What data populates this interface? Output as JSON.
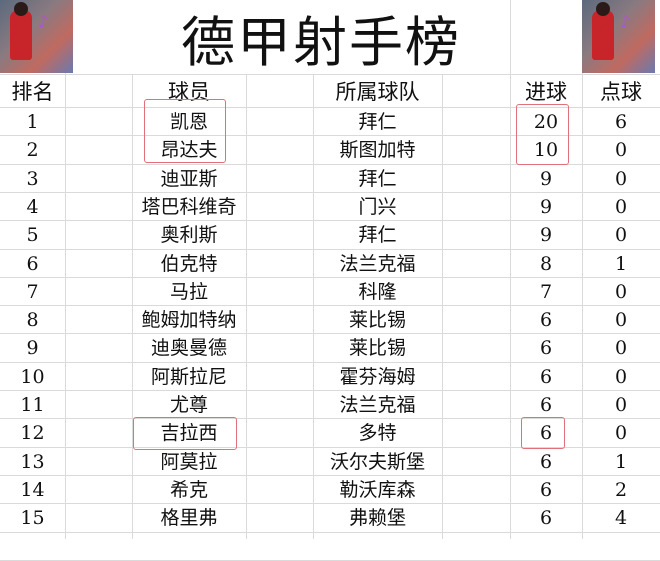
{
  "title": "德甲射手榜",
  "images": [
    "player-artwork-left",
    "player-artwork-right"
  ],
  "headers": {
    "rank": "排名",
    "player": "球员",
    "team": "所属球队",
    "goals": "进球",
    "penalties": "点球"
  },
  "highlight_color": "#e0707a",
  "rows": [
    {
      "rank": "1",
      "player": "凯恩",
      "team": "拜仁",
      "goals": "20",
      "penalties": "6"
    },
    {
      "rank": "2",
      "player": "昂达夫",
      "team": "斯图加特",
      "goals": "10",
      "penalties": "0"
    },
    {
      "rank": "3",
      "player": "迪亚斯",
      "team": "拜仁",
      "goals": "9",
      "penalties": "0"
    },
    {
      "rank": "4",
      "player": "塔巴科维奇",
      "team": "门兴",
      "goals": "9",
      "penalties": "0"
    },
    {
      "rank": "5",
      "player": "奥利斯",
      "team": "拜仁",
      "goals": "9",
      "penalties": "0"
    },
    {
      "rank": "6",
      "player": "伯克特",
      "team": "法兰克福",
      "goals": "8",
      "penalties": "1"
    },
    {
      "rank": "7",
      "player": "马拉",
      "team": "科隆",
      "goals": "7",
      "penalties": "0"
    },
    {
      "rank": "8",
      "player": "鲍姆加特纳",
      "team": "莱比锡",
      "goals": "6",
      "penalties": "0"
    },
    {
      "rank": "9",
      "player": "迪奥曼德",
      "team": "莱比锡",
      "goals": "6",
      "penalties": "0"
    },
    {
      "rank": "10",
      "player": "阿斯拉尼",
      "team": "霍芬海姆",
      "goals": "6",
      "penalties": "0"
    },
    {
      "rank": "11",
      "player": "尤尊",
      "team": "法兰克福",
      "goals": "6",
      "penalties": "0"
    },
    {
      "rank": "12",
      "player": "吉拉西",
      "team": "多特",
      "goals": "6",
      "penalties": "0"
    },
    {
      "rank": "13",
      "player": "阿莫拉",
      "team": "沃尔夫斯堡",
      "goals": "6",
      "penalties": "1"
    },
    {
      "rank": "14",
      "player": "希克",
      "team": "勒沃库森",
      "goals": "6",
      "penalties": "2"
    },
    {
      "rank": "15",
      "player": "格里弗",
      "team": "弗赖堡",
      "goals": "6",
      "penalties": "4"
    }
  ]
}
